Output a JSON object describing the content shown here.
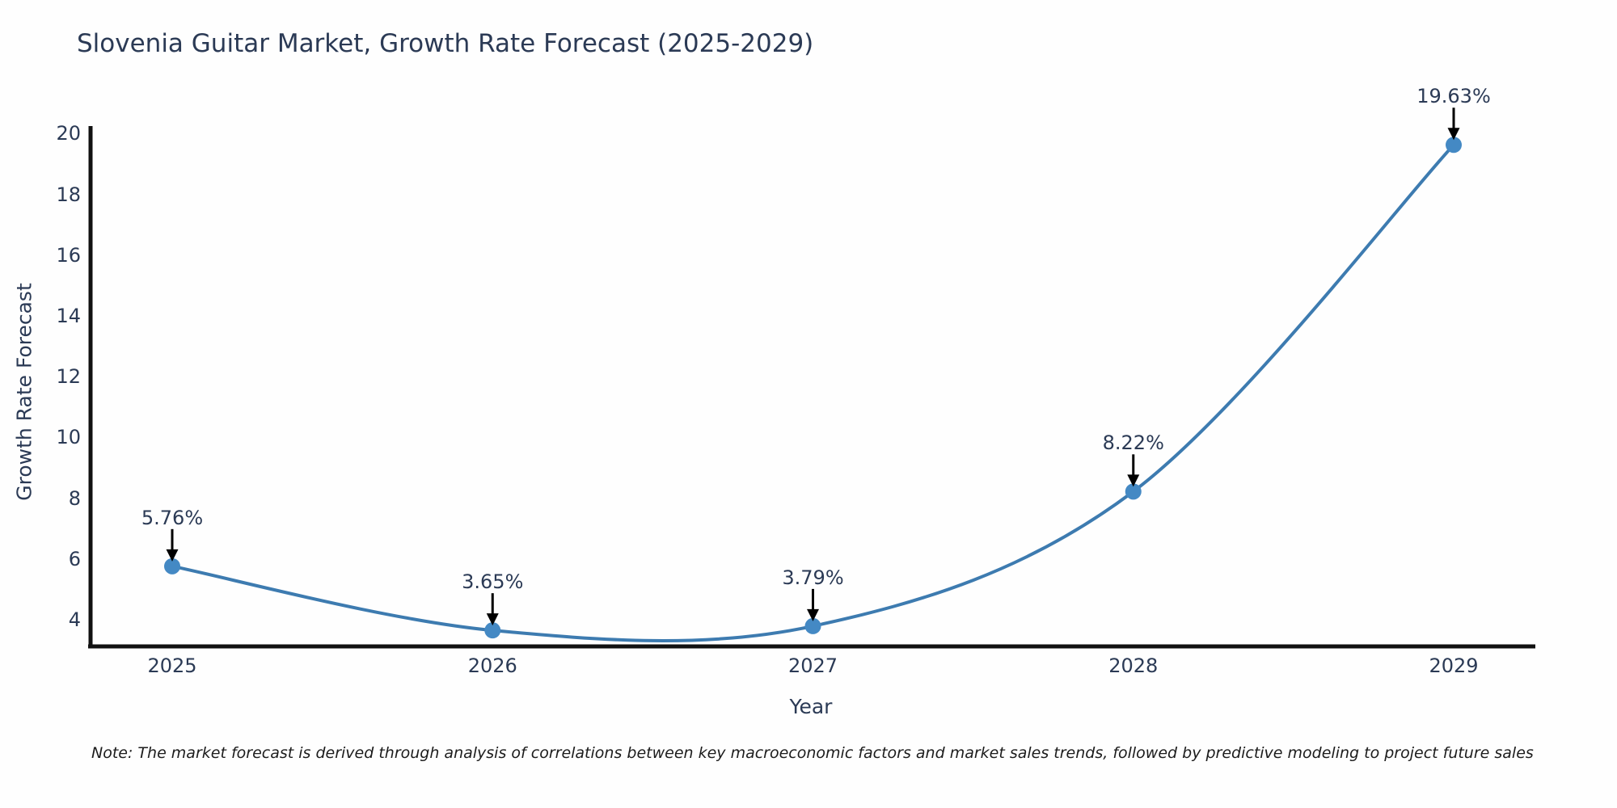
{
  "chart_data": {
    "type": "line",
    "title": "Slovenia Guitar Market, Growth Rate Forecast (2025-2029)",
    "xlabel": "Year",
    "ylabel": "Growth Rate Forecast",
    "x": [
      2025,
      2026,
      2027,
      2028,
      2029
    ],
    "y": [
      5.76,
      3.65,
      3.79,
      8.22,
      19.63
    ],
    "point_labels": [
      "5.76%",
      "3.65%",
      "3.79%",
      "8.22%",
      "19.63%"
    ],
    "x_tick_labels": [
      "2025",
      "2026",
      "2027",
      "2028",
      "2029"
    ],
    "y_tick_values": [
      4,
      6,
      8,
      10,
      12,
      14,
      16,
      18,
      20
    ],
    "y_tick_labels": [
      "4",
      "6",
      "8",
      "10",
      "12",
      "14",
      "16",
      "18",
      "20"
    ],
    "ylim": [
      3.1,
      20.2
    ],
    "line_shape": "spline",
    "grid": false,
    "note": "Note: The market forecast is derived through analysis of correlations between key macroeconomic factors and market sales trends, followed by predictive modeling to project future sales",
    "colors": {
      "line": "#3d7bb0",
      "marker": "#4489c4",
      "arrow": "#000000",
      "axis": "#111111",
      "text": "#2b3a55",
      "note_text": "#1c1c1c",
      "background": "#fefefe"
    }
  }
}
